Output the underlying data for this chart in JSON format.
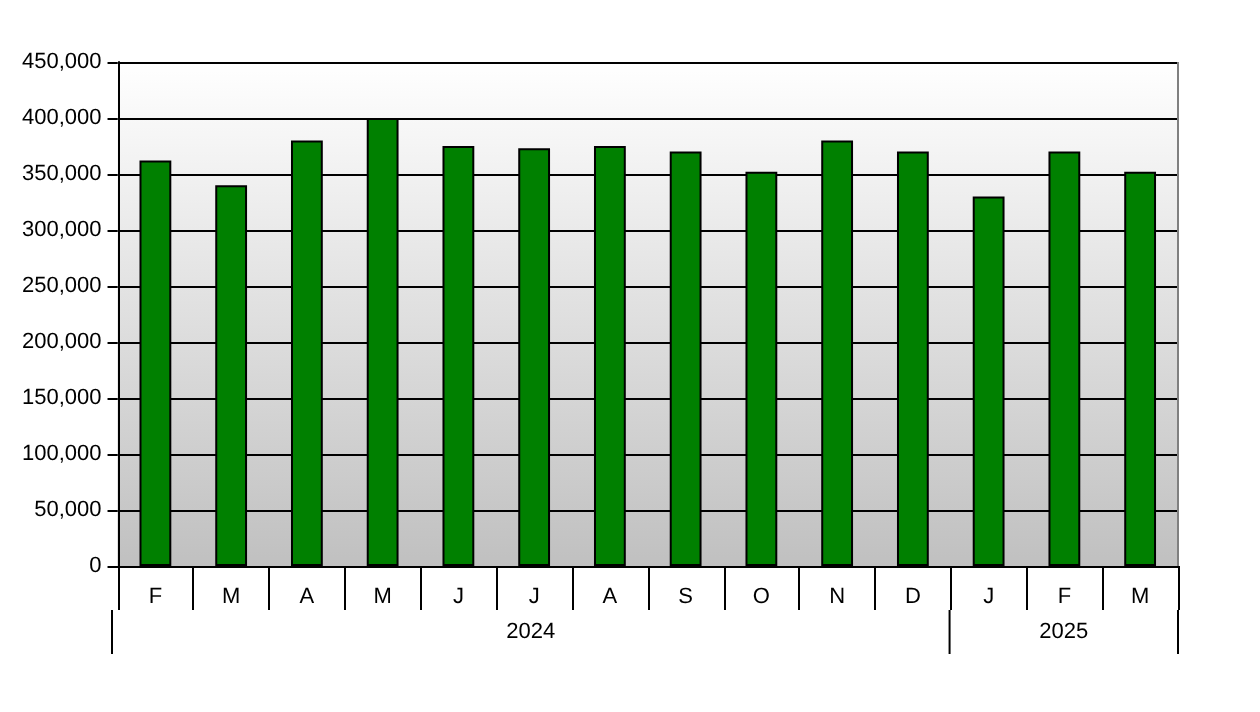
{
  "chart_data": {
    "type": "bar",
    "categories": [
      "F",
      "M",
      "A",
      "M",
      "J",
      "J",
      "A",
      "S",
      "O",
      "N",
      "D",
      "J",
      "F",
      "M"
    ],
    "values": [
      362000,
      340000,
      380000,
      400000,
      375000,
      373000,
      375000,
      370000,
      352000,
      380000,
      370000,
      330000,
      370000,
      352000
    ],
    "color": "#008000",
    "ylim": [
      0,
      450000
    ],
    "yticks": [
      0,
      {
        "value": 50000,
        "label": "50,000"
      },
      {
        "value": 100000,
        "label": "100,000"
      },
      {
        "value": 150000,
        "label": "150,000"
      },
      {
        "value": 200000,
        "label": "200,000"
      },
      {
        "value": 250000,
        "label": "250,000"
      },
      {
        "value": 300000,
        "label": "300,000"
      },
      {
        "value": 350000,
        "label": "350,000"
      },
      {
        "value": 400000,
        "label": "400,000"
      },
      {
        "value": 450000,
        "label": "450,000"
      }
    ],
    "grid": "y",
    "annotations": [
      "2024",
      "2025"
    ]
  }
}
